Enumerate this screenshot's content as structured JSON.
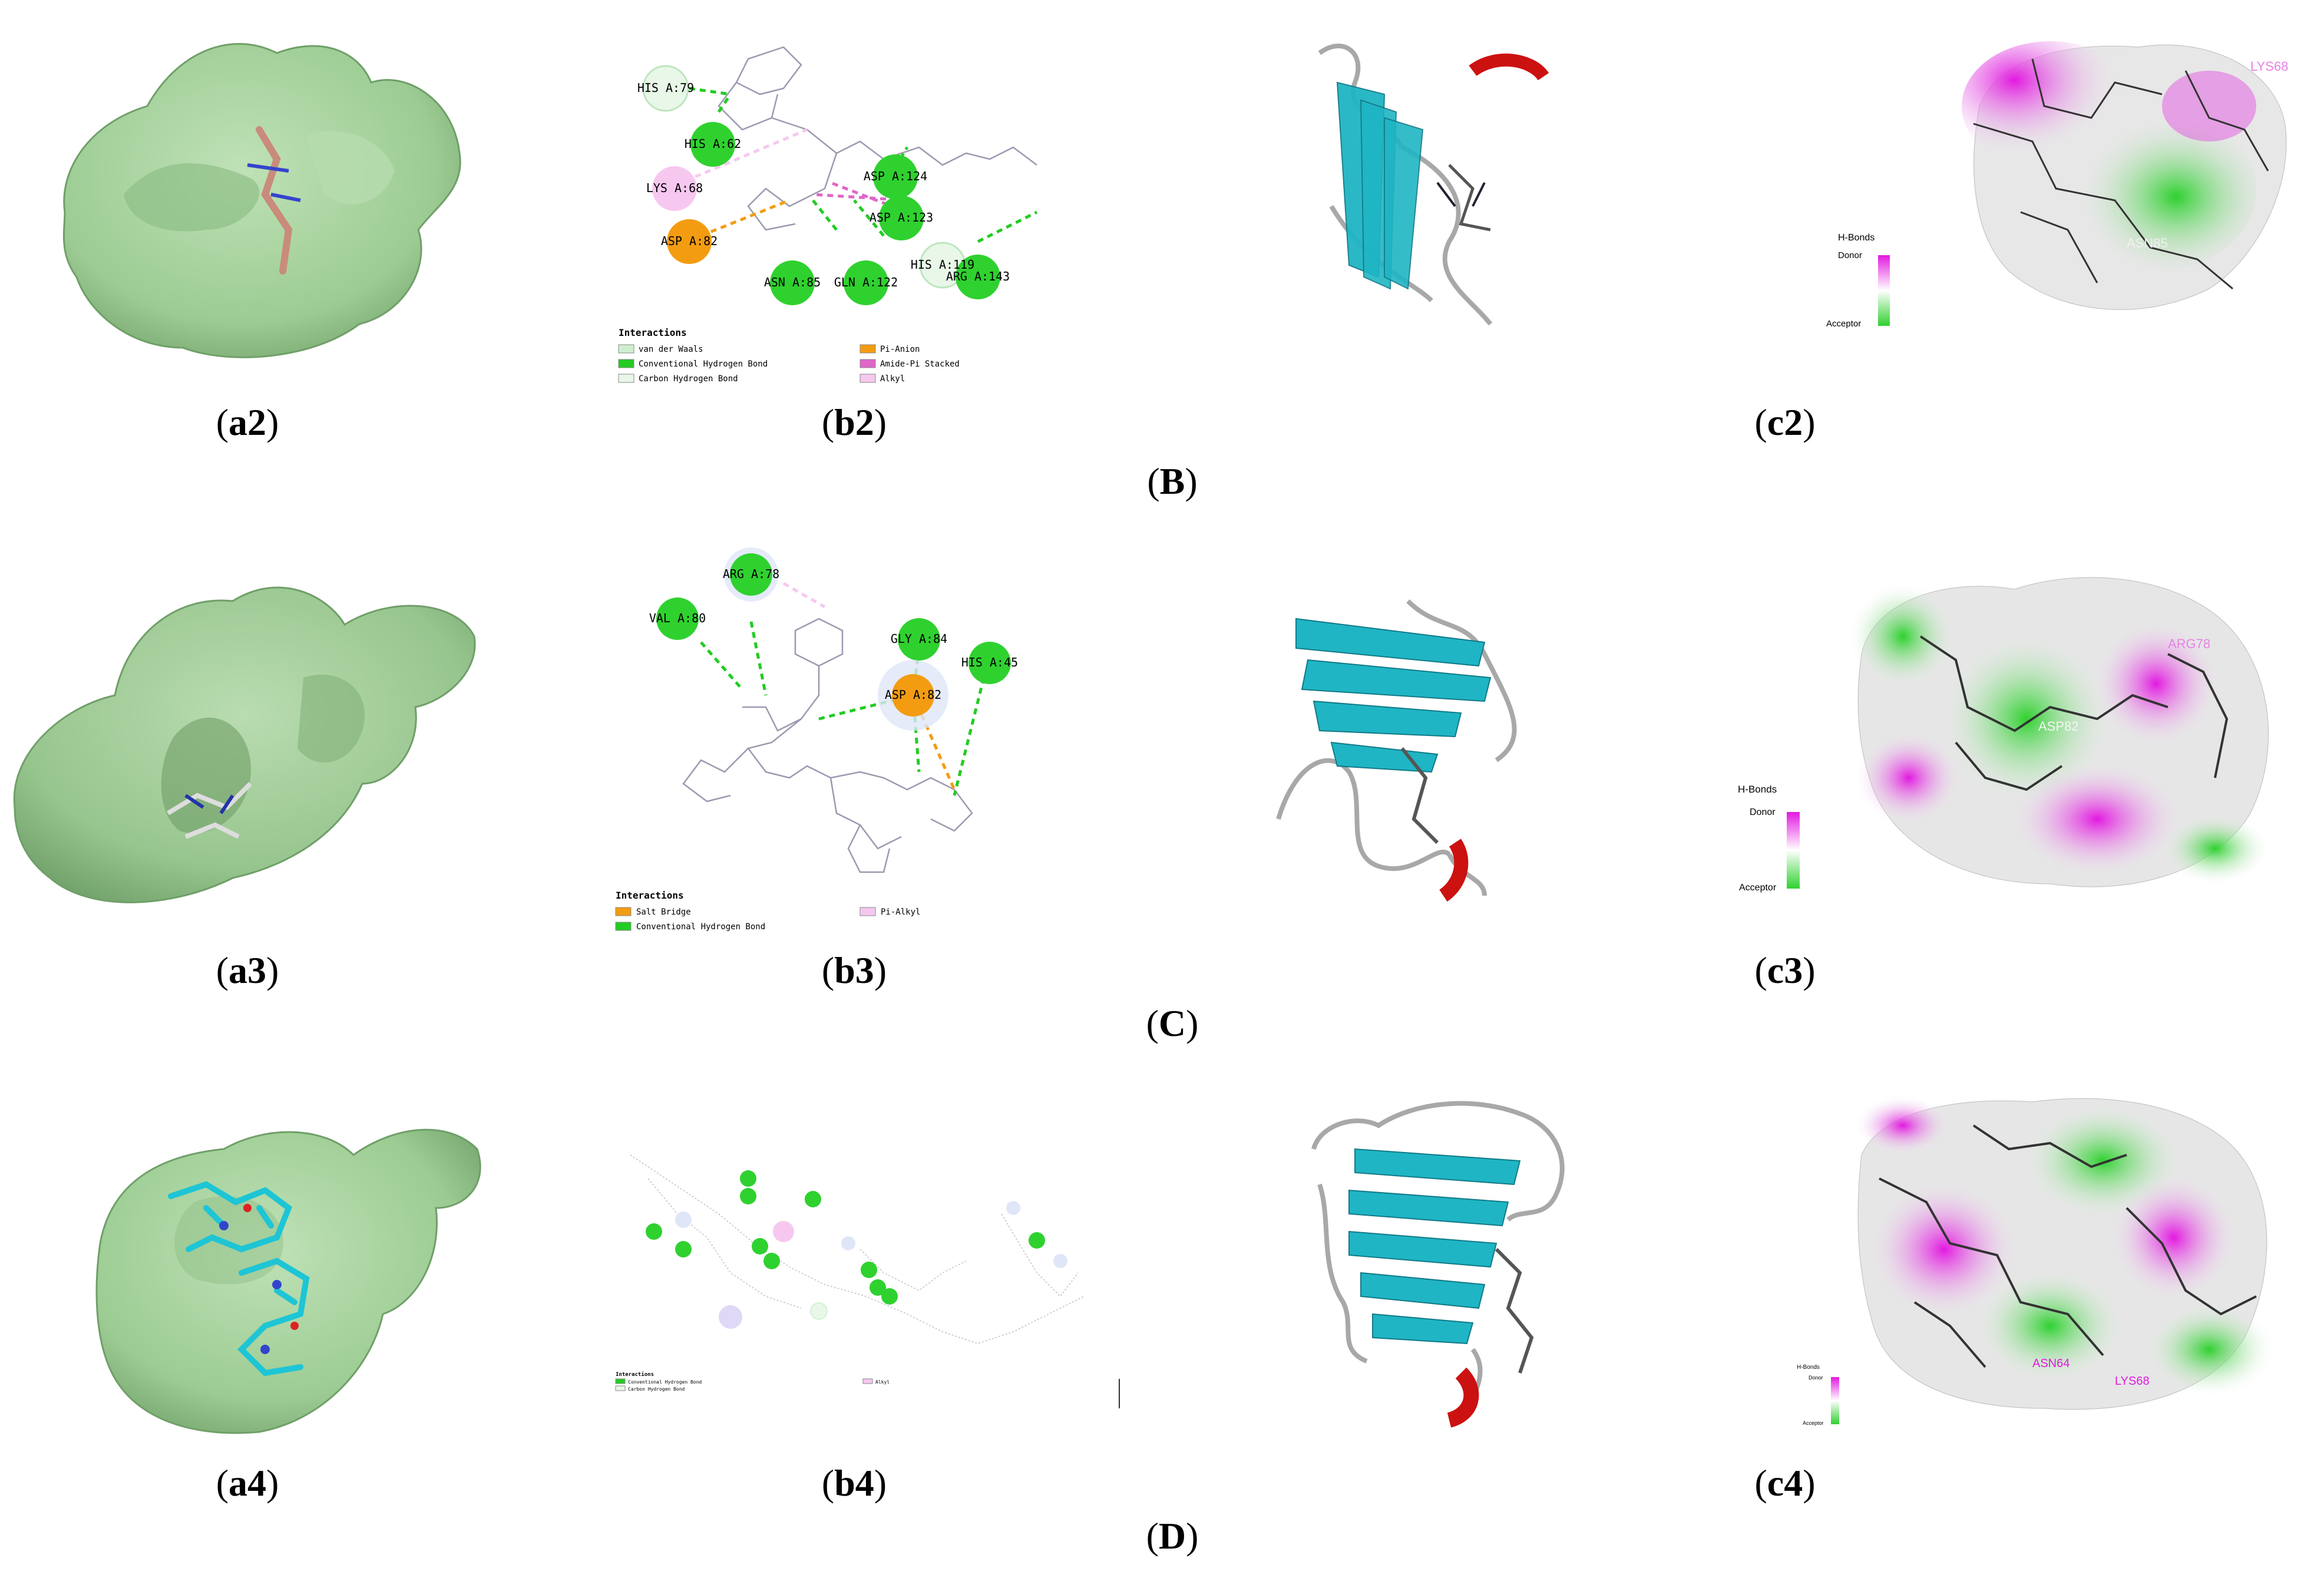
{
  "rows": [
    {
      "group_label": "B",
      "captions": [
        "a2",
        "b2",
        "c2"
      ],
      "interaction_residues": [
        "HIS A:79",
        "HIS A:62",
        "LYS A:68",
        "ASP A:82",
        "ASN A:85",
        "GLN A:122",
        "ASP A:123",
        "ASP A:124",
        "HIS A:119",
        "ARG A:143"
      ],
      "legend_title": "Interactions",
      "legend": [
        {
          "label": "van der Waals",
          "color": "#cfeecf"
        },
        {
          "label": "Conventional Hydrogen Bond",
          "color": "#22cc22"
        },
        {
          "label": "Carbon Hydrogen Bond",
          "color": "#e8f7e8"
        },
        {
          "label": "Pi-Anion",
          "color": "#f39c12"
        },
        {
          "label": "Amide-Pi Stacked",
          "color": "#e066c8"
        },
        {
          "label": "Alkyl",
          "color": "#f6c8f0"
        }
      ],
      "hbond_title": "H-Bonds",
      "hbond_top": "Donor",
      "hbond_bottom": "Acceptor",
      "surface_labels": [
        "LYS68",
        "ASN85"
      ]
    },
    {
      "group_label": "C",
      "captions": [
        "a3",
        "b3",
        "c3"
      ],
      "interaction_residues": [
        "ARG A:78",
        "VAL A:80",
        "GLY A:84",
        "HIS A:45",
        "ASP A:82"
      ],
      "legend_title": "Interactions",
      "legend": [
        {
          "label": "Salt Bridge",
          "color": "#f39c12"
        },
        {
          "label": "Conventional Hydrogen Bond",
          "color": "#22cc22"
        },
        {
          "label": "Pi-Alkyl",
          "color": "#f6c8f0"
        }
      ],
      "hbond_title": "H-Bonds",
      "hbond_top": "Donor",
      "hbond_bottom": "Acceptor",
      "surface_labels": [
        "ARG78",
        "ASP82"
      ]
    },
    {
      "group_label": "D",
      "captions": [
        "a4",
        "b4",
        "c4"
      ],
      "interaction_residues": [],
      "legend_title": "Interactions",
      "legend": [
        {
          "label": "Conventional Hydrogen Bond",
          "color": "#22cc22"
        },
        {
          "label": "Carbon Hydrogen Bond",
          "color": "#e8f7e8"
        },
        {
          "label": "Alkyl",
          "color": "#f6c8f0"
        }
      ],
      "hbond_title": "H-Bonds",
      "hbond_top": "Donor",
      "hbond_bottom": "Acceptor",
      "surface_labels": [
        "ASN64",
        "LYS68"
      ]
    }
  ],
  "colors": {
    "surface_green": "#a9d3a0",
    "ribbon_teal": "#1fb5c4",
    "ribbon_red": "#cc1111",
    "ribbon_gray": "#a8a8a8",
    "donor_magenta": "#e21ae0",
    "acceptor_green": "#2fd12f"
  }
}
